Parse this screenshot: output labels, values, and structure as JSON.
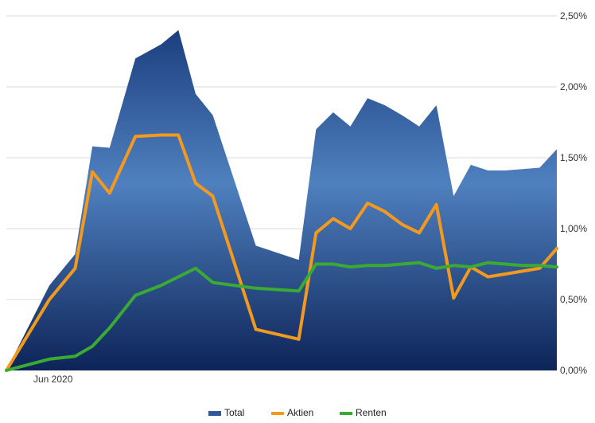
{
  "chart_data": {
    "type": "area",
    "title": "",
    "xlabel": "",
    "ylabel": "",
    "x_tick_labels": [
      "Jun 2020"
    ],
    "y_ticks": [
      0,
      0.5,
      1.0,
      1.5,
      2.0,
      2.5
    ],
    "y_tick_labels": [
      "0,00%",
      "0,50%",
      "1,00%",
      "1,50%",
      "2,00%",
      "2,50%"
    ],
    "ylim": [
      0,
      2.5
    ],
    "y_axis_side": "right",
    "grid": true,
    "legend_placement": "bottom",
    "x": [
      0,
      5,
      8,
      10,
      12,
      15,
      18,
      20,
      22,
      24,
      29,
      34,
      36,
      38,
      40,
      42,
      44,
      46,
      48,
      50,
      52,
      54,
      56,
      58,
      60,
      62,
      64
    ],
    "series": [
      {
        "name": "Total",
        "style": "area",
        "color": "#2e5a9c",
        "values": [
          0.0,
          0.6,
          0.82,
          1.58,
          1.57,
          2.2,
          2.3,
          2.4,
          1.95,
          1.8,
          0.88,
          0.78,
          1.7,
          1.82,
          1.72,
          1.92,
          1.87,
          1.8,
          1.72,
          1.87,
          1.23,
          1.45,
          1.41,
          1.41,
          1.42,
          1.43,
          1.56
        ]
      },
      {
        "name": "Aktien",
        "style": "line",
        "color": "#f39a1e",
        "values": [
          0.0,
          0.5,
          0.72,
          1.4,
          1.25,
          1.65,
          1.66,
          1.66,
          1.32,
          1.23,
          0.29,
          0.22,
          0.97,
          1.07,
          1.0,
          1.18,
          1.12,
          1.03,
          0.97,
          1.17,
          0.51,
          0.73,
          0.66,
          0.68,
          0.7,
          0.72,
          0.86
        ]
      },
      {
        "name": "Renten",
        "style": "line",
        "color": "#3aaa35",
        "values": [
          0.0,
          0.08,
          0.1,
          0.17,
          0.3,
          0.53,
          0.6,
          0.66,
          0.72,
          0.62,
          0.58,
          0.56,
          0.75,
          0.75,
          0.73,
          0.74,
          0.74,
          0.75,
          0.76,
          0.72,
          0.74,
          0.73,
          0.76,
          0.75,
          0.74,
          0.74,
          0.73
        ]
      }
    ]
  }
}
